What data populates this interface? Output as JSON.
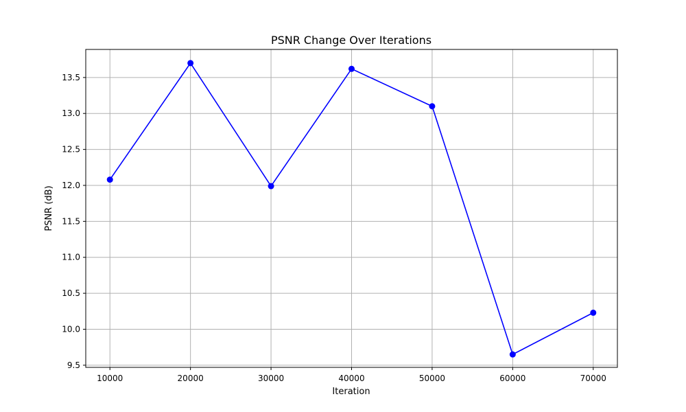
{
  "chart_data": {
    "type": "line",
    "title": "PSNR Change Over Iterations",
    "xlabel": "Iteration",
    "ylabel": "PSNR (dB)",
    "xlim": [
      7000,
      73000
    ],
    "ylim": [
      9.47,
      13.89
    ],
    "xticks": [
      10000,
      20000,
      30000,
      40000,
      50000,
      60000,
      70000
    ],
    "yticks": [
      9.5,
      10.0,
      10.5,
      11.0,
      11.5,
      12.0,
      12.5,
      13.0,
      13.5
    ],
    "ytick_labels": [
      "9.5",
      "10.0",
      "10.5",
      "11.0",
      "11.5",
      "12.0",
      "12.5",
      "13.0",
      "13.5"
    ],
    "grid": true,
    "series": [
      {
        "color": "#0000ff",
        "marker": "circle",
        "x": [
          10000,
          20000,
          30000,
          40000,
          50000,
          60000,
          70000
        ],
        "y": [
          12.08,
          13.7,
          11.99,
          13.62,
          13.1,
          9.65,
          10.23
        ]
      }
    ]
  }
}
